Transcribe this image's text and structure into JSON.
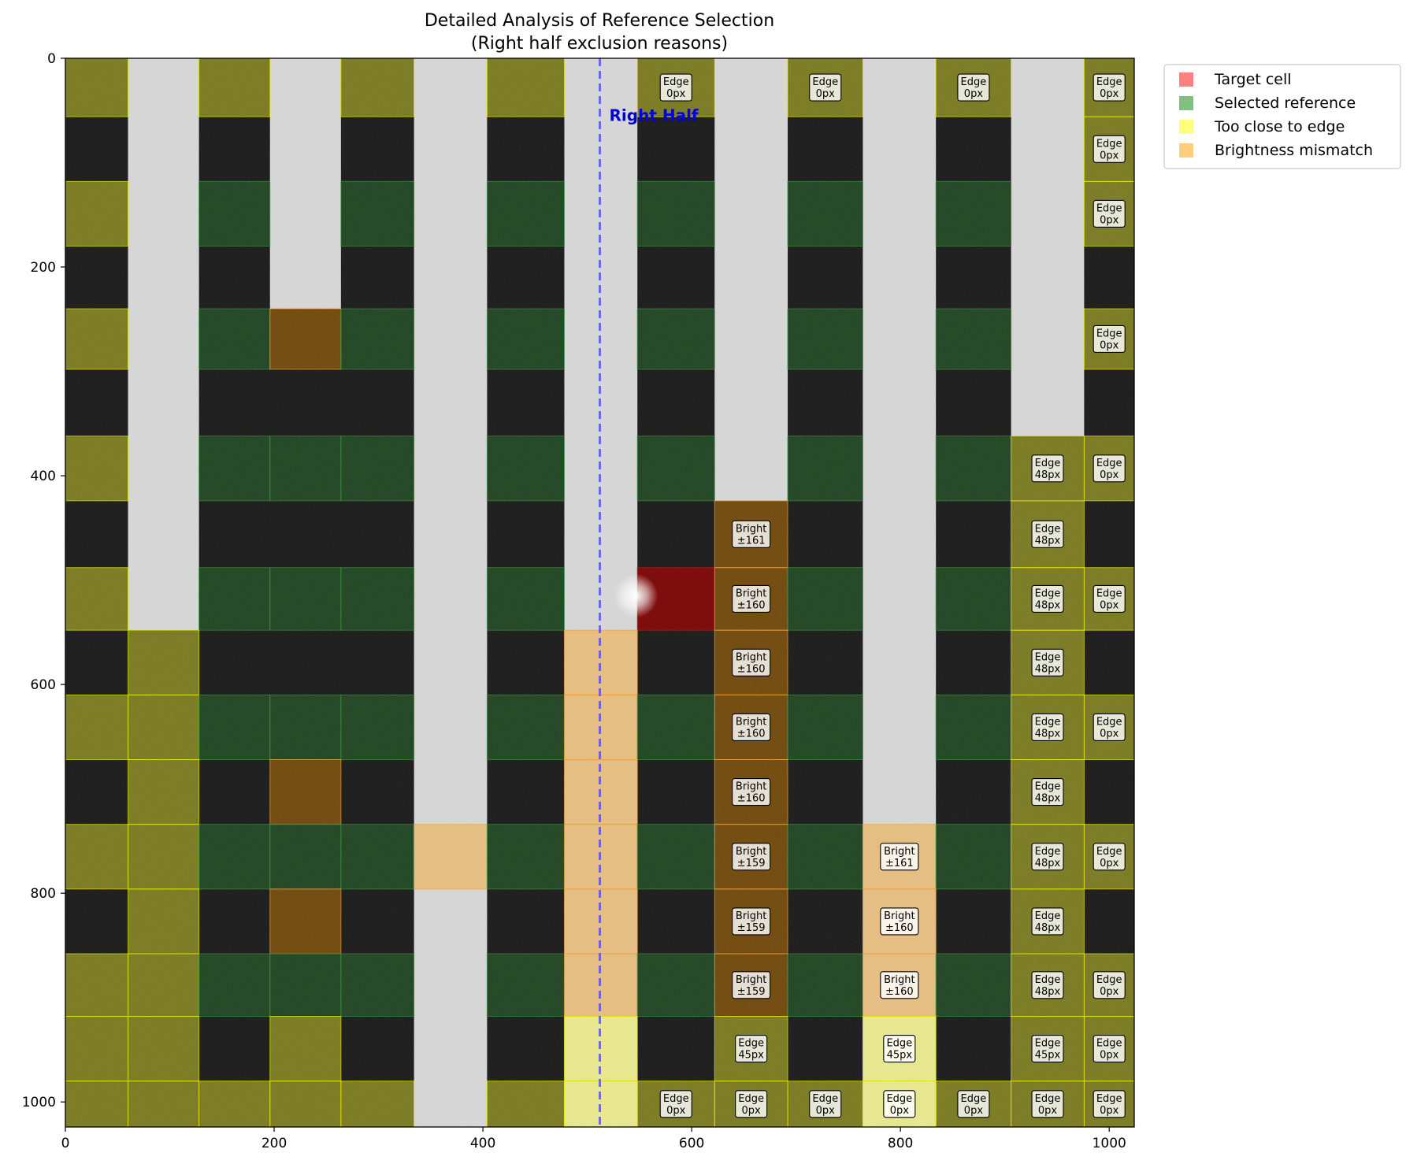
{
  "chart_data": {
    "type": "heatmap",
    "title": "Detailed Analysis of Reference Selection",
    "subtitle": "(Right half exclusion reasons)",
    "xlabel": "",
    "ylabel": "",
    "xlim": [
      0,
      1024
    ],
    "ylim": [
      1024,
      0
    ],
    "y_inverted": true,
    "x_ticks": [
      0,
      200,
      400,
      600,
      800,
      1000
    ],
    "y_ticks": [
      0,
      200,
      400,
      600,
      800,
      1000
    ],
    "grid": false,
    "legend_position": "outside-top-right",
    "legend": [
      {
        "label": "Target cell",
        "color": "#ff8080"
      },
      {
        "label": "Selected reference",
        "color": "#80c080"
      },
      {
        "label": "Too close to edge",
        "color": "#ffff80"
      },
      {
        "label": "Brightness mismatch",
        "color": "#ffcc80"
      }
    ],
    "divider": {
      "x": 512,
      "label": "Right Half",
      "color": "#5050e0"
    },
    "columns": [
      {
        "x0": 0,
        "x1": 60,
        "stripe": false
      },
      {
        "x0": 60,
        "x1": 128,
        "stripe": true
      },
      {
        "x0": 128,
        "x1": 196,
        "stripe": false
      },
      {
        "x0": 196,
        "x1": 264,
        "stripe": true
      },
      {
        "x0": 264,
        "x1": 334,
        "stripe": false
      },
      {
        "x0": 334,
        "x1": 404,
        "stripe": true
      },
      {
        "x0": 404,
        "x1": 478,
        "stripe": false
      },
      {
        "x0": 478,
        "x1": 548,
        "stripe": true
      },
      {
        "x0": 548,
        "x1": 622,
        "stripe": false
      },
      {
        "x0": 622,
        "x1": 692,
        "stripe": true
      },
      {
        "x0": 692,
        "x1": 764,
        "stripe": false
      },
      {
        "x0": 764,
        "x1": 834,
        "stripe": true
      },
      {
        "x0": 834,
        "x1": 906,
        "stripe": false
      },
      {
        "x0": 906,
        "x1": 976,
        "stripe": true
      },
      {
        "x0": 976,
        "x1": 1024,
        "stripe": false
      }
    ],
    "rows": [
      {
        "y0": 0,
        "y1": 56
      },
      {
        "y0": 56,
        "y1": 118
      },
      {
        "y0": 118,
        "y1": 180
      },
      {
        "y0": 180,
        "y1": 240
      },
      {
        "y0": 240,
        "y1": 298
      },
      {
        "y0": 298,
        "y1": 362
      },
      {
        "y0": 362,
        "y1": 424
      },
      {
        "y0": 424,
        "y1": 488
      },
      {
        "y0": 488,
        "y1": 548
      },
      {
        "y0": 548,
        "y1": 610
      },
      {
        "y0": 610,
        "y1": 672
      },
      {
        "y0": 672,
        "y1": 734
      },
      {
        "y0": 734,
        "y1": 796
      },
      {
        "y0": 796,
        "y1": 858
      },
      {
        "y0": 858,
        "y1": 918
      },
      {
        "y0": 918,
        "y1": 980
      },
      {
        "y0": 980,
        "y1": 1024
      }
    ],
    "stripe_ends": [
      {
        "col": 1,
        "y1": 548
      },
      {
        "col": 3,
        "y1": 240
      },
      {
        "col": 9,
        "y1": 424
      },
      {
        "col": 13,
        "y1": 362
      }
    ],
    "cells": [
      {
        "col": 0,
        "row": 0,
        "status": "edge"
      },
      {
        "col": 2,
        "row": 0,
        "status": "edge"
      },
      {
        "col": 4,
        "row": 0,
        "status": "edge"
      },
      {
        "col": 6,
        "row": 0,
        "status": "edge"
      },
      {
        "col": 8,
        "row": 0,
        "status": "edge",
        "label": [
          "Edge",
          "0px"
        ]
      },
      {
        "col": 10,
        "row": 0,
        "status": "edge",
        "label": [
          "Edge",
          "0px"
        ]
      },
      {
        "col": 12,
        "row": 0,
        "status": "edge",
        "label": [
          "Edge",
          "0px"
        ]
      },
      {
        "col": 14,
        "row": 0,
        "status": "edge",
        "label": [
          "Edge",
          "0px"
        ]
      },
      {
        "col": 14,
        "row": 1,
        "status": "edge",
        "label": [
          "Edge",
          "0px"
        ]
      },
      {
        "col": 0,
        "row": 2,
        "status": "edge"
      },
      {
        "col": 2,
        "row": 2,
        "status": "selected"
      },
      {
        "col": 4,
        "row": 2,
        "status": "selected"
      },
      {
        "col": 6,
        "row": 2,
        "status": "selected"
      },
      {
        "col": 8,
        "row": 2,
        "status": "selected"
      },
      {
        "col": 10,
        "row": 2,
        "status": "selected"
      },
      {
        "col": 12,
        "row": 2,
        "status": "selected"
      },
      {
        "col": 14,
        "row": 2,
        "status": "edge",
        "label": [
          "Edge",
          "0px"
        ]
      },
      {
        "col": 0,
        "row": 4,
        "status": "edge"
      },
      {
        "col": 2,
        "row": 4,
        "status": "selected"
      },
      {
        "col": 3,
        "row": 4,
        "status": "bright"
      },
      {
        "col": 4,
        "row": 4,
        "status": "selected"
      },
      {
        "col": 6,
        "row": 4,
        "status": "selected"
      },
      {
        "col": 8,
        "row": 4,
        "status": "selected"
      },
      {
        "col": 10,
        "row": 4,
        "status": "selected"
      },
      {
        "col": 12,
        "row": 4,
        "status": "selected"
      },
      {
        "col": 14,
        "row": 4,
        "status": "edge",
        "label": [
          "Edge",
          "0px"
        ]
      },
      {
        "col": 0,
        "row": 6,
        "status": "edge"
      },
      {
        "col": 2,
        "row": 6,
        "status": "selected"
      },
      {
        "col": 3,
        "row": 6,
        "status": "selected"
      },
      {
        "col": 4,
        "row": 6,
        "status": "selected"
      },
      {
        "col": 6,
        "row": 6,
        "status": "selected"
      },
      {
        "col": 8,
        "row": 6,
        "status": "selected"
      },
      {
        "col": 10,
        "row": 6,
        "status": "selected"
      },
      {
        "col": 12,
        "row": 6,
        "status": "selected"
      },
      {
        "col": 13,
        "row": 6,
        "status": "edge",
        "label": [
          "Edge",
          "48px"
        ]
      },
      {
        "col": 14,
        "row": 6,
        "status": "edge",
        "label": [
          "Edge",
          "0px"
        ]
      },
      {
        "col": 9,
        "row": 7,
        "status": "bright",
        "label": [
          "Bright",
          "±161"
        ]
      },
      {
        "col": 13,
        "row": 7,
        "status": "edge",
        "label": [
          "Edge",
          "48px"
        ]
      },
      {
        "col": 0,
        "row": 8,
        "status": "edge"
      },
      {
        "col": 2,
        "row": 8,
        "status": "selected"
      },
      {
        "col": 3,
        "row": 8,
        "status": "selected"
      },
      {
        "col": 4,
        "row": 8,
        "status": "selected"
      },
      {
        "col": 6,
        "row": 8,
        "status": "selected"
      },
      {
        "col": 8,
        "row": 8,
        "status": "target"
      },
      {
        "col": 9,
        "row": 8,
        "status": "bright",
        "label": [
          "Bright",
          "±160"
        ]
      },
      {
        "col": 10,
        "row": 8,
        "status": "selected"
      },
      {
        "col": 12,
        "row": 8,
        "status": "selected"
      },
      {
        "col": 13,
        "row": 8,
        "status": "edge",
        "label": [
          "Edge",
          "48px"
        ]
      },
      {
        "col": 14,
        "row": 8,
        "status": "edge",
        "label": [
          "Edge",
          "0px"
        ]
      },
      {
        "col": 1,
        "row": 9,
        "status": "edge"
      },
      {
        "col": 7,
        "row": 9,
        "status": "bright"
      },
      {
        "col": 9,
        "row": 9,
        "status": "bright",
        "label": [
          "Bright",
          "±160"
        ]
      },
      {
        "col": 13,
        "row": 9,
        "status": "edge",
        "label": [
          "Edge",
          "48px"
        ]
      },
      {
        "col": 0,
        "row": 10,
        "status": "edge"
      },
      {
        "col": 1,
        "row": 10,
        "status": "edge"
      },
      {
        "col": 2,
        "row": 10,
        "status": "selected"
      },
      {
        "col": 3,
        "row": 10,
        "status": "selected"
      },
      {
        "col": 4,
        "row": 10,
        "status": "selected"
      },
      {
        "col": 6,
        "row": 10,
        "status": "selected"
      },
      {
        "col": 7,
        "row": 10,
        "status": "bright"
      },
      {
        "col": 8,
        "row": 10,
        "status": "selected"
      },
      {
        "col": 9,
        "row": 10,
        "status": "bright",
        "label": [
          "Bright",
          "±160"
        ]
      },
      {
        "col": 10,
        "row": 10,
        "status": "selected"
      },
      {
        "col": 12,
        "row": 10,
        "status": "selected"
      },
      {
        "col": 13,
        "row": 10,
        "status": "edge",
        "label": [
          "Edge",
          "48px"
        ]
      },
      {
        "col": 14,
        "row": 10,
        "status": "edge",
        "label": [
          "Edge",
          "0px"
        ]
      },
      {
        "col": 1,
        "row": 11,
        "status": "edge"
      },
      {
        "col": 3,
        "row": 11,
        "status": "bright"
      },
      {
        "col": 7,
        "row": 11,
        "status": "bright"
      },
      {
        "col": 9,
        "row": 11,
        "status": "bright",
        "label": [
          "Bright",
          "±160"
        ]
      },
      {
        "col": 13,
        "row": 11,
        "status": "edge",
        "label": [
          "Edge",
          "48px"
        ]
      },
      {
        "col": 0,
        "row": 12,
        "status": "edge"
      },
      {
        "col": 1,
        "row": 12,
        "status": "edge"
      },
      {
        "col": 2,
        "row": 12,
        "status": "selected"
      },
      {
        "col": 3,
        "row": 12,
        "status": "selected"
      },
      {
        "col": 4,
        "row": 12,
        "status": "selected"
      },
      {
        "col": 5,
        "row": 12,
        "status": "bright"
      },
      {
        "col": 6,
        "row": 12,
        "status": "selected"
      },
      {
        "col": 7,
        "row": 12,
        "status": "bright"
      },
      {
        "col": 8,
        "row": 12,
        "status": "selected"
      },
      {
        "col": 9,
        "row": 12,
        "status": "bright",
        "label": [
          "Bright",
          "±159"
        ]
      },
      {
        "col": 10,
        "row": 12,
        "status": "selected"
      },
      {
        "col": 11,
        "row": 12,
        "status": "bright",
        "label": [
          "Bright",
          "±161"
        ]
      },
      {
        "col": 12,
        "row": 12,
        "status": "selected"
      },
      {
        "col": 13,
        "row": 12,
        "status": "edge",
        "label": [
          "Edge",
          "48px"
        ]
      },
      {
        "col": 14,
        "row": 12,
        "status": "edge",
        "label": [
          "Edge",
          "0px"
        ]
      },
      {
        "col": 1,
        "row": 13,
        "status": "edge"
      },
      {
        "col": 3,
        "row": 13,
        "status": "bright"
      },
      {
        "col": 7,
        "row": 13,
        "status": "bright"
      },
      {
        "col": 9,
        "row": 13,
        "status": "bright",
        "label": [
          "Bright",
          "±159"
        ]
      },
      {
        "col": 11,
        "row": 13,
        "status": "bright",
        "label": [
          "Bright",
          "±160"
        ]
      },
      {
        "col": 13,
        "row": 13,
        "status": "edge",
        "label": [
          "Edge",
          "48px"
        ]
      },
      {
        "col": 0,
        "row": 14,
        "status": "edge"
      },
      {
        "col": 1,
        "row": 14,
        "status": "edge"
      },
      {
        "col": 2,
        "row": 14,
        "status": "selected"
      },
      {
        "col": 3,
        "row": 14,
        "status": "selected"
      },
      {
        "col": 4,
        "row": 14,
        "status": "selected"
      },
      {
        "col": 6,
        "row": 14,
        "status": "selected"
      },
      {
        "col": 7,
        "row": 14,
        "status": "bright"
      },
      {
        "col": 8,
        "row": 14,
        "status": "selected"
      },
      {
        "col": 9,
        "row": 14,
        "status": "bright",
        "label": [
          "Bright",
          "±159"
        ]
      },
      {
        "col": 10,
        "row": 14,
        "status": "selected"
      },
      {
        "col": 11,
        "row": 14,
        "status": "bright",
        "label": [
          "Bright",
          "±160"
        ]
      },
      {
        "col": 12,
        "row": 14,
        "status": "selected"
      },
      {
        "col": 13,
        "row": 14,
        "status": "edge",
        "label": [
          "Edge",
          "48px"
        ]
      },
      {
        "col": 14,
        "row": 14,
        "status": "edge",
        "label": [
          "Edge",
          "0px"
        ]
      },
      {
        "col": 0,
        "row": 15,
        "status": "edge"
      },
      {
        "col": 1,
        "row": 15,
        "status": "edge"
      },
      {
        "col": 3,
        "row": 15,
        "status": "edge"
      },
      {
        "col": 7,
        "row": 15,
        "status": "edge"
      },
      {
        "col": 9,
        "row": 15,
        "status": "edge",
        "label": [
          "Edge",
          "45px"
        ]
      },
      {
        "col": 11,
        "row": 15,
        "status": "edge",
        "label": [
          "Edge",
          "45px"
        ]
      },
      {
        "col": 13,
        "row": 15,
        "status": "edge",
        "label": [
          "Edge",
          "45px"
        ]
      },
      {
        "col": 14,
        "row": 15,
        "status": "edge",
        "label": [
          "Edge",
          "0px"
        ]
      },
      {
        "col": 0,
        "row": 16,
        "status": "edge"
      },
      {
        "col": 1,
        "row": 16,
        "status": "edge"
      },
      {
        "col": 2,
        "row": 16,
        "status": "edge"
      },
      {
        "col": 3,
        "row": 16,
        "status": "edge"
      },
      {
        "col": 4,
        "row": 16,
        "status": "edge"
      },
      {
        "col": 6,
        "row": 16,
        "status": "edge"
      },
      {
        "col": 7,
        "row": 16,
        "status": "edge"
      },
      {
        "col": 8,
        "row": 16,
        "status": "edge",
        "label": [
          "Edge",
          "0px"
        ]
      },
      {
        "col": 9,
        "row": 16,
        "status": "edge",
        "label": [
          "Edge",
          "0px"
        ]
      },
      {
        "col": 10,
        "row": 16,
        "status": "edge",
        "label": [
          "Edge",
          "0px"
        ]
      },
      {
        "col": 11,
        "row": 16,
        "status": "edge",
        "label": [
          "Edge",
          "0px"
        ]
      },
      {
        "col": 12,
        "row": 16,
        "status": "edge",
        "label": [
          "Edge",
          "0px"
        ]
      },
      {
        "col": 13,
        "row": 16,
        "status": "edge",
        "label": [
          "Edge",
          "0px"
        ]
      },
      {
        "col": 14,
        "row": 16,
        "status": "edge",
        "label": [
          "Edge",
          "0px"
        ]
      }
    ]
  }
}
